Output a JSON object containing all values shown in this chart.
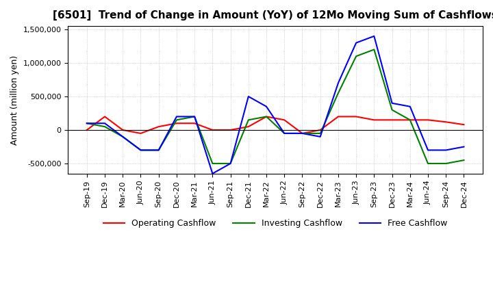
{
  "title": "[6501]  Trend of Change in Amount (YoY) of 12Mo Moving Sum of Cashflows",
  "ylabel": "Amount (million yen)",
  "ylim": [
    -650000,
    1550000
  ],
  "yticks": [
    -500000,
    0,
    500000,
    1000000,
    1500000
  ],
  "x_labels": [
    "Sep-19",
    "Dec-19",
    "Mar-20",
    "Jun-20",
    "Sep-20",
    "Dec-20",
    "Mar-21",
    "Jun-21",
    "Sep-21",
    "Dec-21",
    "Mar-22",
    "Jun-22",
    "Sep-22",
    "Dec-22",
    "Mar-23",
    "Jun-23",
    "Sep-23",
    "Dec-23",
    "Mar-24",
    "Jun-24",
    "Sep-24",
    "Dec-24"
  ],
  "operating": [
    0,
    200000,
    0,
    -50000,
    50000,
    100000,
    100000,
    0,
    0,
    50000,
    200000,
    150000,
    -50000,
    0,
    200000,
    200000,
    150000,
    150000,
    150000,
    150000,
    120000,
    80000
  ],
  "investing": [
    100000,
    50000,
    -100000,
    -300000,
    -300000,
    150000,
    200000,
    -500000,
    -500000,
    150000,
    200000,
    -50000,
    -50000,
    -50000,
    550000,
    1100000,
    1200000,
    300000,
    150000,
    -500000,
    -500000,
    -450000
  ],
  "free": [
    100000,
    100000,
    -100000,
    -300000,
    -300000,
    200000,
    200000,
    -650000,
    -500000,
    500000,
    350000,
    -50000,
    -50000,
    -100000,
    700000,
    1300000,
    1400000,
    400000,
    350000,
    -300000,
    -300000,
    -250000
  ],
  "operating_color": "#ff0000",
  "investing_color": "#008000",
  "free_color": "#0000ff",
  "background_color": "#ffffff",
  "grid_color": "#b0b0b0"
}
